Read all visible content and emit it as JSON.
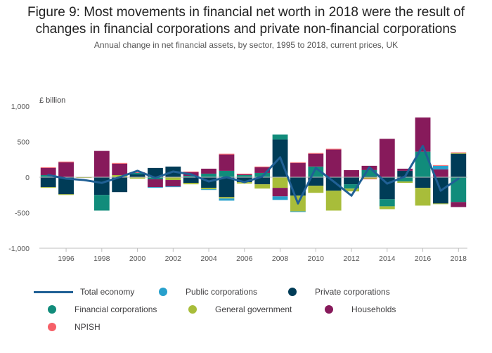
{
  "title": "Figure 9: Most movements in financial net worth in 2018 were the result of\nchanges in financial corporations and private non-financial corporations",
  "subtitle": "Annual change in net financial assets, by sector, 1995 to 2018, current prices, UK",
  "chart_data": {
    "type": "bar",
    "stacked": true,
    "ylabel": "£ billion",
    "ylim": [
      -1000,
      1000
    ],
    "yticks": [
      1000,
      500,
      0,
      -500,
      -1000
    ],
    "ytick_labels": [
      "1,000",
      "500",
      "0",
      "-500",
      "-1,000"
    ],
    "xtick_labels": [
      "1996",
      "1998",
      "2000",
      "2002",
      "2004",
      "2006",
      "2008",
      "2010",
      "2012",
      "2014",
      "2016",
      "2018"
    ],
    "categories": [
      1995,
      1996,
      1997,
      1998,
      1999,
      2000,
      2001,
      2002,
      2003,
      2004,
      2005,
      2006,
      2007,
      2008,
      2009,
      2010,
      2011,
      2012,
      2013,
      2014,
      2015,
      2016,
      2017,
      2018
    ],
    "series": [
      {
        "name": "Private corporations",
        "color": "#003c57",
        "values": [
          -140,
          -240,
          0,
          -250,
          -210,
          40,
          130,
          150,
          -80,
          -150,
          -280,
          -70,
          -100,
          530,
          -260,
          -120,
          -190,
          -100,
          10,
          -310,
          90,
          -150,
          -370,
          330
        ]
      },
      {
        "name": "Financial corporations",
        "color": "#118c7b",
        "values": [
          30,
          0,
          0,
          -220,
          0,
          20,
          -30,
          0,
          20,
          50,
          90,
          30,
          60,
          70,
          0,
          150,
          0,
          -60,
          90,
          -100,
          -60,
          360,
          0,
          -350
        ]
      },
      {
        "name": "General government",
        "color": "#a8bd3a",
        "values": [
          -10,
          -10,
          -10,
          0,
          30,
          -20,
          0,
          -40,
          -20,
          -20,
          -20,
          -20,
          -60,
          -150,
          -220,
          -100,
          -280,
          -40,
          -20,
          -40,
          -20,
          -250,
          -10,
          10
        ]
      },
      {
        "name": "Households",
        "color": "#871a5b",
        "values": [
          100,
          210,
          0,
          370,
          160,
          0,
          -110,
          -90,
          50,
          70,
          230,
          10,
          80,
          -120,
          200,
          180,
          390,
          100,
          60,
          540,
          30,
          480,
          110,
          -70
        ]
      },
      {
        "name": "Public corporations",
        "color": "#27a0cc",
        "values": [
          0,
          0,
          0,
          0,
          0,
          0,
          -10,
          -10,
          0,
          -10,
          -30,
          0,
          0,
          -50,
          -10,
          0,
          0,
          0,
          0,
          0,
          0,
          0,
          50,
          0
        ]
      },
      {
        "name": "NPISH",
        "color": "#f66068",
        "values": [
          10,
          10,
          0,
          0,
          10,
          10,
          0,
          0,
          10,
          0,
          10,
          10,
          10,
          0,
          10,
          10,
          10,
          0,
          -10,
          0,
          0,
          0,
          10,
          10
        ]
      }
    ],
    "line_series": {
      "name": "Total economy",
      "color": "#206095",
      "values": [
        30,
        -20,
        -40,
        -80,
        0,
        90,
        -10,
        80,
        40,
        -60,
        0,
        -70,
        10,
        280,
        -370,
        130,
        -60,
        -260,
        140,
        -90,
        10,
        440,
        -190,
        -20
      ]
    },
    "legend_position": "bottom",
    "grid": false
  },
  "legend": [
    {
      "name": "Total economy",
      "kind": "line",
      "color": "#206095"
    },
    {
      "name": "Public corporations",
      "kind": "dot",
      "color": "#27a0cc"
    },
    {
      "name": "Private corporations",
      "kind": "dot",
      "color": "#003c57"
    },
    {
      "name": "Financial corporations",
      "kind": "dot",
      "color": "#118c7b"
    },
    {
      "name": "General government",
      "kind": "dot",
      "color": "#a8bd3a"
    },
    {
      "name": "Households",
      "kind": "dot",
      "color": "#871a5b"
    },
    {
      "name": "NPISH",
      "kind": "dot",
      "color": "#f66068"
    }
  ]
}
